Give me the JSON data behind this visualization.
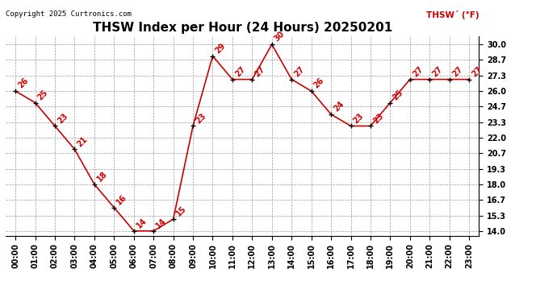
{
  "title": "THSW Index per Hour (24 Hours) 20250201",
  "copyright": "Copyright 2025 Curtronics.com",
  "legend_label": "THSW´ (°F)",
  "hours": [
    "00:00",
    "01:00",
    "02:00",
    "03:00",
    "04:00",
    "05:00",
    "06:00",
    "07:00",
    "08:00",
    "09:00",
    "10:00",
    "11:00",
    "12:00",
    "13:00",
    "14:00",
    "15:00",
    "16:00",
    "17:00",
    "18:00",
    "19:00",
    "20:00",
    "21:00",
    "22:00",
    "23:00"
  ],
  "values": [
    26,
    25,
    23,
    21,
    18,
    16,
    14,
    14,
    15,
    23,
    29,
    27,
    27,
    30,
    27,
    26,
    24,
    23,
    23,
    25,
    27,
    27,
    27,
    27
  ],
  "line_color": "#cc0000",
  "marker_color": "#000000",
  "label_color": "#cc0000",
  "background_color": "#ffffff",
  "grid_color": "#999999",
  "yticks": [
    14.0,
    15.3,
    16.7,
    18.0,
    19.3,
    20.7,
    22.0,
    23.3,
    24.7,
    26.0,
    27.3,
    28.7,
    30.0
  ],
  "ylim": [
    13.6,
    30.7
  ],
  "title_fontsize": 11,
  "axis_fontsize": 7,
  "label_fontsize": 7,
  "copyright_fontsize": 6.5
}
